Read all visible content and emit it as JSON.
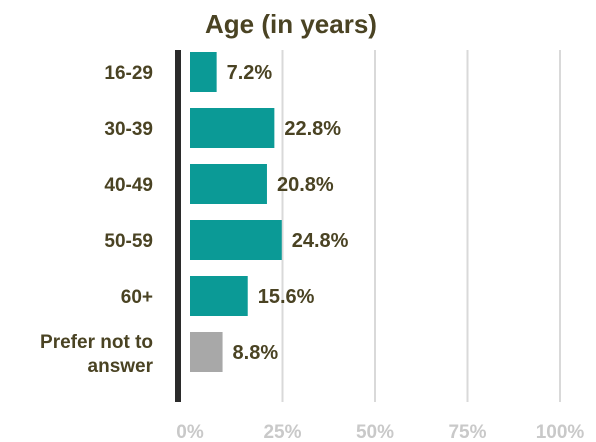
{
  "chart_data": {
    "type": "bar",
    "orientation": "horizontal",
    "title": "Age (in years)",
    "categories": [
      "16-29",
      "30-39",
      "40-49",
      "50-59",
      "60+",
      "Prefer not to answer"
    ],
    "values": [
      7.2,
      22.8,
      20.8,
      24.8,
      15.6,
      8.8
    ],
    "value_labels": [
      "7.2%",
      "22.8%",
      "20.8%",
      "24.8%",
      "15.6%",
      "8.8%"
    ],
    "bar_colors": [
      "#0b9a96",
      "#0b9a96",
      "#0b9a96",
      "#0b9a96",
      "#0b9a96",
      "#a8a8a8"
    ],
    "xlim": [
      0,
      100
    ],
    "xticks": [
      0,
      25,
      50,
      75,
      100
    ],
    "xtick_labels": [
      "0%",
      "25%",
      "50%",
      "75%",
      "100%"
    ],
    "grid": true,
    "colors": {
      "title": "#4a4323",
      "category_label": "#4a4323",
      "value_label": "#4a4323",
      "tick_label": "#c9c9c9",
      "grid": "#d9d9d9",
      "axis": "#2b2b2b"
    }
  }
}
